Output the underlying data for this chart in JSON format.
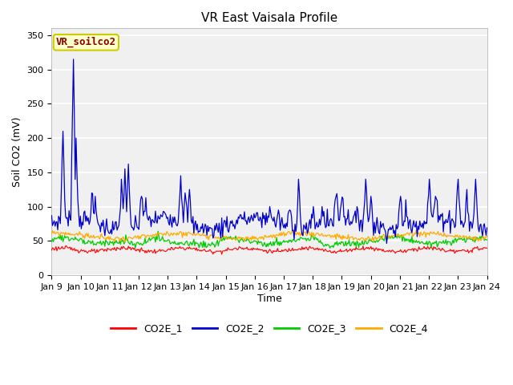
{
  "title": "VR East Vaisala Profile",
  "xlabel": "Time",
  "ylabel": "Soil CO2 (mV)",
  "ylim": [
    0,
    360
  ],
  "yticks": [
    0,
    50,
    100,
    150,
    200,
    250,
    300,
    350
  ],
  "xtick_labels": [
    "Jan 9",
    "Jan 10",
    "Jan 11",
    "Jan 12",
    "Jan 13",
    "Jan 14",
    "Jan 15",
    "Jan 16",
    "Jan 17",
    "Jan 18",
    "Jan 19",
    "Jan 20",
    "Jan 21",
    "Jan 22",
    "Jan 23",
    "Jan 24"
  ],
  "legend_labels": [
    "CO2E_1",
    "CO2E_2",
    "CO2E_3",
    "CO2E_4"
  ],
  "line_colors": [
    "#ff0000",
    "#0000cc",
    "#00cc00",
    "#ffaa00"
  ],
  "fig_facecolor": "#ffffff",
  "plot_facecolor": "#f0f0f0",
  "grid_color": "#ffffff",
  "watermark_text": "VR_soilco2",
  "watermark_color": "#8B0000",
  "watermark_bg": "#ffffcc",
  "watermark_border": "#cccc00",
  "title_fontsize": 11,
  "axis_label_fontsize": 9,
  "tick_fontsize": 8,
  "legend_fontsize": 9,
  "n_points": 500
}
